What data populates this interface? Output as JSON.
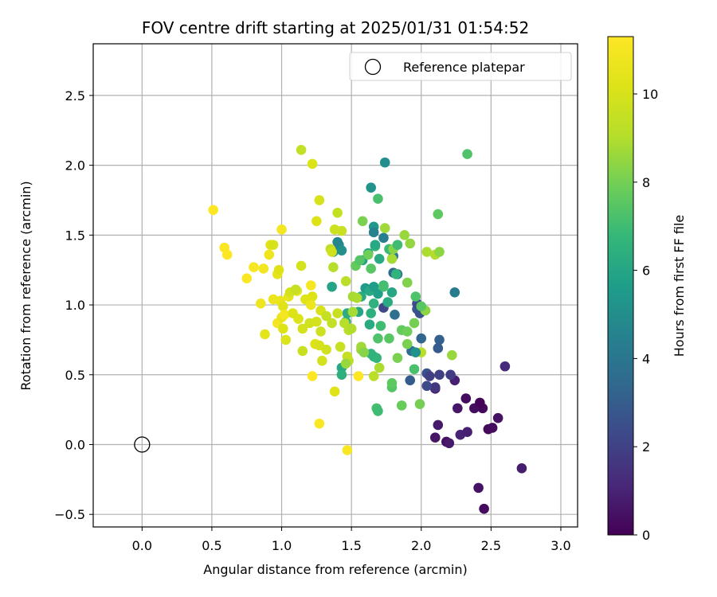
{
  "chart_data": {
    "type": "scatter",
    "title": "FOV centre drift starting at 2025/01/31 01:54:52",
    "xlabel": "Angular distance from reference (arcmin)",
    "ylabel": "Rotation from reference (arcmin)",
    "xlim": [
      -0.35,
      3.12
    ],
    "ylim": [
      -0.59,
      2.87
    ],
    "xticks": [
      0.0,
      0.5,
      1.0,
      1.5,
      2.0,
      2.5,
      3.0
    ],
    "xtick_labels": [
      "0.0",
      "0.5",
      "1.0",
      "1.5",
      "2.0",
      "2.5",
      "3.0"
    ],
    "yticks": [
      -0.5,
      0.0,
      0.5,
      1.0,
      1.5,
      2.0,
      2.5
    ],
    "ytick_labels": [
      "−0.5",
      "0.0",
      "0.5",
      "1.0",
      "1.5",
      "2.0",
      "2.5"
    ],
    "grid": true,
    "legend": {
      "position": "top-right",
      "entries": [
        "Reference platepar"
      ]
    },
    "colormap": "viridis",
    "colorbar": {
      "label": "Hours from first FF file",
      "range": [
        0,
        11.3
      ],
      "ticks": [
        0,
        2,
        4,
        6,
        8,
        10
      ],
      "tick_labels": [
        "0",
        "2",
        "4",
        "6",
        "8",
        "10"
      ]
    },
    "reference_point": {
      "name": "Reference platepar",
      "x": 0.0,
      "y": 0.0
    },
    "points": [
      [
        2.45,
        -0.46,
        0.3
      ],
      [
        2.41,
        -0.31,
        0.5
      ],
      [
        2.72,
        -0.17,
        0.8
      ],
      [
        2.18,
        0.02,
        0.4
      ],
      [
        2.1,
        0.05,
        0.6
      ],
      [
        2.2,
        0.01,
        0.7
      ],
      [
        2.28,
        0.07,
        1.0
      ],
      [
        2.33,
        0.09,
        0.9
      ],
      [
        2.48,
        0.11,
        0.2
      ],
      [
        2.51,
        0.12,
        0.3
      ],
      [
        2.44,
        0.26,
        0.2
      ],
      [
        2.38,
        0.26,
        0.4
      ],
      [
        2.26,
        0.26,
        0.6
      ],
      [
        2.32,
        0.33,
        0.3
      ],
      [
        2.42,
        0.3,
        0.1
      ],
      [
        2.55,
        0.19,
        0.5
      ],
      [
        2.12,
        0.14,
        0.7
      ],
      [
        2.1,
        0.4,
        0.8
      ],
      [
        2.6,
        0.56,
        1.2
      ],
      [
        2.24,
        0.46,
        0.9
      ],
      [
        2.1,
        0.41,
        1.6
      ],
      [
        2.04,
        0.42,
        2.3
      ],
      [
        2.04,
        0.51,
        2.6
      ],
      [
        2.13,
        0.5,
        2.0
      ],
      [
        2.21,
        0.5,
        1.8
      ],
      [
        1.92,
        0.46,
        3.0
      ],
      [
        1.93,
        0.67,
        3.6
      ],
      [
        2.0,
        0.76,
        3.3
      ],
      [
        2.13,
        0.75,
        3.1
      ],
      [
        2.12,
        0.69,
        2.9
      ],
      [
        1.97,
        0.97,
        2.8
      ],
      [
        1.97,
        1.01,
        2.3
      ],
      [
        1.99,
        0.94,
        2.6
      ],
      [
        2.24,
        1.09,
        4.2
      ],
      [
        1.73,
        0.98,
        2.2
      ],
      [
        1.81,
        0.93,
        3.8
      ],
      [
        1.83,
        1.22,
        3.6
      ],
      [
        1.8,
        1.23,
        3.4
      ],
      [
        1.73,
        1.48,
        4.3
      ],
      [
        1.74,
        2.02,
        5.0
      ],
      [
        1.64,
        1.84,
        5.2
      ],
      [
        1.66,
        1.56,
        5.4
      ],
      [
        1.62,
        1.37,
        5.6
      ],
      [
        1.58,
        1.32,
        5.8
      ],
      [
        1.6,
        1.12,
        5.5
      ],
      [
        1.69,
        1.08,
        5.7
      ],
      [
        1.55,
        0.95,
        6.0
      ],
      [
        1.57,
        1.06,
        6.1
      ],
      [
        1.63,
        0.86,
        6.2
      ],
      [
        1.47,
        0.94,
        6.3
      ],
      [
        1.46,
        0.88,
        6.3
      ],
      [
        1.43,
        0.55,
        6.1
      ],
      [
        1.43,
        0.5,
        6.4
      ],
      [
        1.36,
        1.13,
        5.9
      ],
      [
        1.37,
        1.38,
        5.3
      ],
      [
        1.41,
        1.43,
        4.9
      ],
      [
        1.4,
        1.45,
        4.7
      ],
      [
        1.43,
        1.39,
        5.1
      ],
      [
        1.66,
        1.52,
        4.5
      ],
      [
        1.8,
        1.35,
        4.1
      ],
      [
        1.66,
        0.63,
        6.5
      ],
      [
        1.68,
        0.62,
        6.7
      ],
      [
        1.64,
        0.65,
        6.6
      ],
      [
        1.68,
        0.26,
        7.1
      ],
      [
        1.69,
        0.24,
        7.0
      ],
      [
        1.95,
        0.54,
        7.2
      ],
      [
        1.79,
        0.41,
        7.4
      ],
      [
        1.79,
        0.44,
        7.6
      ],
      [
        1.86,
        0.28,
        7.8
      ],
      [
        1.99,
        0.29,
        8.0
      ],
      [
        1.64,
        0.94,
        6.4
      ],
      [
        1.71,
        0.85,
        7.0
      ],
      [
        1.69,
        0.76,
        7.3
      ],
      [
        1.73,
        1.14,
        6.8
      ],
      [
        1.77,
        1.4,
        6.9
      ],
      [
        1.82,
        1.22,
        6.6
      ],
      [
        1.77,
        0.76,
        7.5
      ],
      [
        1.83,
        0.62,
        8.1
      ],
      [
        1.86,
        0.82,
        7.7
      ],
      [
        1.9,
        0.81,
        7.9
      ],
      [
        1.95,
        0.87,
        8.0
      ],
      [
        1.96,
        1.06,
        7.3
      ],
      [
        2.03,
        0.96,
        8.4
      ],
      [
        1.9,
        1.16,
        8.2
      ],
      [
        1.92,
        1.44,
        8.5
      ],
      [
        1.88,
        1.5,
        8.6
      ],
      [
        1.8,
        1.4,
        8.3
      ],
      [
        1.74,
        1.55,
        8.7
      ],
      [
        1.79,
        1.33,
        8.8
      ],
      [
        1.69,
        1.76,
        7.2
      ],
      [
        2.12,
        1.65,
        7.6
      ],
      [
        2.33,
        2.08,
        7.3
      ],
      [
        2.04,
        1.38,
        8.9
      ],
      [
        2.1,
        1.36,
        9.0
      ],
      [
        2.13,
        1.38,
        8.4
      ],
      [
        2.22,
        0.64,
        8.6
      ],
      [
        2.0,
        0.66,
        9.1
      ],
      [
        1.7,
        0.55,
        8.9
      ],
      [
        1.66,
        0.49,
        9.2
      ],
      [
        1.48,
        0.6,
        9.3
      ],
      [
        1.47,
        0.63,
        9.5
      ],
      [
        1.51,
        1.06,
        8.8
      ],
      [
        1.46,
        1.17,
        9.2
      ],
      [
        1.43,
        1.53,
        9.6
      ],
      [
        1.38,
        1.54,
        9.7
      ],
      [
        1.4,
        1.66,
        9.5
      ],
      [
        1.35,
        1.4,
        9.3
      ],
      [
        1.36,
        1.38,
        9.8
      ],
      [
        1.27,
        1.75,
        10.0
      ],
      [
        1.25,
        1.6,
        10.2
      ],
      [
        1.22,
        2.01,
        10.1
      ],
      [
        1.14,
        2.11,
        9.4
      ],
      [
        1.14,
        1.28,
        9.9
      ],
      [
        1.17,
        1.04,
        10.3
      ],
      [
        1.11,
        1.1,
        10.4
      ],
      [
        1.05,
        1.06,
        10.5
      ],
      [
        0.99,
        1.03,
        10.6
      ],
      [
        0.94,
        1.04,
        10.7
      ],
      [
        0.92,
        1.43,
        10.3
      ],
      [
        0.94,
        1.43,
        10.0
      ],
      [
        0.97,
        1.22,
        10.5
      ],
      [
        0.91,
        1.36,
        10.8
      ],
      [
        0.98,
        1.25,
        10.2
      ],
      [
        1.0,
        1.54,
        11.0
      ],
      [
        0.85,
        1.01,
        10.8
      ],
      [
        0.8,
        1.27,
        11.1
      ],
      [
        0.75,
        1.19,
        11.2
      ],
      [
        0.87,
        1.26,
        10.9
      ],
      [
        0.88,
        0.79,
        10.4
      ],
      [
        0.97,
        0.87,
        10.9
      ],
      [
        1.01,
        0.83,
        10.2
      ],
      [
        1.03,
        0.75,
        10.1
      ],
      [
        1.01,
        0.99,
        10.3
      ],
      [
        1.0,
        0.91,
        10.6
      ],
      [
        1.02,
        0.93,
        11.0
      ],
      [
        1.08,
        0.94,
        10.2
      ],
      [
        1.12,
        0.9,
        10.1
      ],
      [
        1.15,
        0.83,
        9.9
      ],
      [
        1.15,
        0.67,
        9.6
      ],
      [
        1.2,
        0.87,
        9.8
      ],
      [
        1.22,
        1.06,
        10.2
      ],
      [
        1.21,
        1.0,
        10.7
      ],
      [
        1.21,
        1.14,
        11.1
      ],
      [
        1.25,
        0.88,
        9.9
      ],
      [
        1.24,
        0.72,
        10.2
      ],
      [
        1.27,
        0.71,
        10.0
      ],
      [
        1.28,
        0.81,
        9.7
      ],
      [
        1.29,
        0.6,
        9.9
      ],
      [
        1.28,
        0.96,
        10.0
      ],
      [
        1.32,
        0.92,
        9.5
      ],
      [
        1.32,
        0.68,
        9.8
      ],
      [
        1.36,
        0.87,
        9.4
      ],
      [
        1.38,
        0.38,
        10.3
      ],
      [
        1.4,
        0.94,
        9.6
      ],
      [
        1.42,
        0.7,
        9.6
      ],
      [
        1.45,
        0.87,
        9.1
      ],
      [
        1.48,
        0.82,
        9.2
      ],
      [
        1.5,
        0.83,
        9.0
      ],
      [
        1.51,
        0.95,
        8.8
      ],
      [
        1.54,
        1.05,
        8.9
      ],
      [
        1.57,
        0.68,
        8.5
      ],
      [
        1.57,
        0.7,
        8.7
      ],
      [
        1.53,
        1.28,
        7.7
      ],
      [
        1.56,
        1.32,
        7.4
      ],
      [
        1.58,
        1.6,
        8.1
      ],
      [
        1.62,
        1.36,
        7.9
      ],
      [
        1.64,
        1.26,
        7.5
      ],
      [
        1.67,
        1.42,
        6.9
      ],
      [
        1.7,
        1.33,
        6.2
      ],
      [
        1.66,
        1.01,
        6.5
      ],
      [
        1.63,
        1.1,
        6.1
      ],
      [
        1.66,
        1.13,
        5.6
      ],
      [
        1.73,
        1.13,
        7.1
      ],
      [
        1.76,
        1.02,
        6.2
      ],
      [
        1.79,
        1.09,
        6.0
      ],
      [
        1.27,
        0.15,
        11.2
      ],
      [
        1.47,
        -0.04,
        11.2
      ],
      [
        1.22,
        0.49,
        11.3
      ],
      [
        1.55,
        0.49,
        11.3
      ],
      [
        0.51,
        1.68,
        11.3
      ],
      [
        0.59,
        1.41,
        11.2
      ],
      [
        0.61,
        1.36,
        11.3
      ],
      [
        1.06,
        1.09,
        9.9
      ],
      [
        1.1,
        1.11,
        9.6
      ],
      [
        1.37,
        1.27,
        9.1
      ],
      [
        2.0,
        0.99,
        7.5
      ],
      [
        1.9,
        0.72,
        8.1
      ],
      [
        1.59,
        0.66,
        8.3
      ],
      [
        1.46,
        0.58,
        8.6
      ],
      [
        1.96,
        0.66,
        5.1
      ],
      [
        2.06,
        0.49,
        1.9
      ],
      [
        1.83,
        1.43,
        7.0
      ],
      [
        1.67,
        1.43,
        6.1
      ]
    ]
  }
}
